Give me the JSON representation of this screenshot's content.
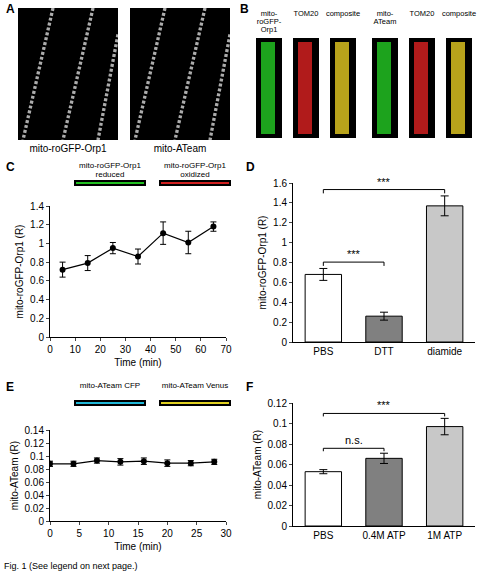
{
  "image_panels": [
    {
      "panel": "A",
      "images": [
        {
          "label": "mito-roGFP-Orp1"
        },
        {
          "label": "mito-ATeam"
        }
      ]
    },
    {
      "panel": "B",
      "groups": [
        {
          "labels": [
            "mito-roGFP-Orp1",
            "TOM20",
            "composite"
          ]
        },
        {
          "labels": [
            "mito-ATeam",
            "TOM20",
            "composite"
          ]
        }
      ]
    }
  ],
  "chart_data": [
    {
      "panel": "C",
      "type": "line",
      "insets": [
        "mito-roGFP-Orp1 reduced",
        "mito-roGFP-Orp1 oxidized"
      ],
      "x_label": "Time (min)",
      "y_label": "mito-roGFP-Orp1 (R)",
      "x": [
        5,
        15,
        25,
        35,
        45,
        55,
        65
      ],
      "values": [
        0.72,
        0.79,
        0.95,
        0.86,
        1.11,
        1.01,
        1.18
      ],
      "errors": [
        0.08,
        0.08,
        0.06,
        0.08,
        0.12,
        0.12,
        0.05
      ],
      "color": "#000000",
      "marker": "circle",
      "xlim": [
        0,
        70
      ],
      "xticks": [
        0,
        10,
        20,
        30,
        40,
        50,
        60,
        70
      ],
      "ylim": [
        0,
        1.4
      ],
      "yticks": [
        0,
        0.2,
        0.4,
        0.6,
        0.8,
        1,
        1.2,
        1.4
      ],
      "grid": false
    },
    {
      "panel": "D",
      "type": "bar",
      "y_label": "mito-roGFP-Orp1 (R)",
      "categories": [
        "PBS",
        "DTT",
        "diamide"
      ],
      "values": [
        0.68,
        0.26,
        1.37
      ],
      "errors": [
        0.06,
        0.04,
        0.1
      ],
      "colors": [
        "#ffffff",
        "#808080",
        "#c8c8c8"
      ],
      "comparisons": [
        {
          "between": [
            "PBS",
            "DTT"
          ],
          "text": "***"
        },
        {
          "between": [
            "PBS",
            "diamide"
          ],
          "text": "***"
        }
      ],
      "ylim": [
        0,
        1.6
      ],
      "yticks": [
        0,
        0.2,
        0.4,
        0.6,
        0.8,
        1,
        1.2,
        1.4,
        1.6
      ],
      "grid": false
    },
    {
      "panel": "E",
      "type": "line",
      "insets": [
        "mito-ATeam CFP",
        "mito-ATeam Venus"
      ],
      "x_label": "Time (min)",
      "y_label": "mito-ATeam (R)",
      "x": [
        0,
        4,
        8,
        12,
        16,
        20,
        24,
        28
      ],
      "values": [
        0.088,
        0.088,
        0.093,
        0.091,
        0.092,
        0.089,
        0.089,
        0.091
      ],
      "errors": [
        0.004,
        0.004,
        0.004,
        0.005,
        0.005,
        0.005,
        0.004,
        0.004
      ],
      "color": "#000000",
      "marker": "circle",
      "xlim": [
        0,
        30
      ],
      "xticks": [
        0,
        5,
        10,
        15,
        20,
        25,
        30
      ],
      "ylim": [
        0,
        0.14
      ],
      "yticks": [
        0,
        0.02,
        0.04,
        0.06,
        0.08,
        0.1,
        0.12,
        0.14
      ],
      "grid": false
    },
    {
      "panel": "F",
      "type": "bar",
      "y_label": "mito-ATeam (R)",
      "categories": [
        "PBS",
        "0.4M ATP",
        "1M ATP"
      ],
      "values": [
        0.053,
        0.066,
        0.097
      ],
      "errors": [
        0.002,
        0.005,
        0.008
      ],
      "colors": [
        "#ffffff",
        "#808080",
        "#c8c8c8"
      ],
      "comparisons": [
        {
          "between": [
            "PBS",
            "0.4M ATP"
          ],
          "text": "n.s."
        },
        {
          "between": [
            "PBS",
            "1M ATP"
          ],
          "text": "***"
        }
      ],
      "ylim": [
        0,
        0.12
      ],
      "yticks": [
        0,
        0.02,
        0.04,
        0.06,
        0.08,
        0.1,
        0.12
      ],
      "grid": false
    }
  ],
  "caption": "Fig. 1 (See legend on next page.)"
}
